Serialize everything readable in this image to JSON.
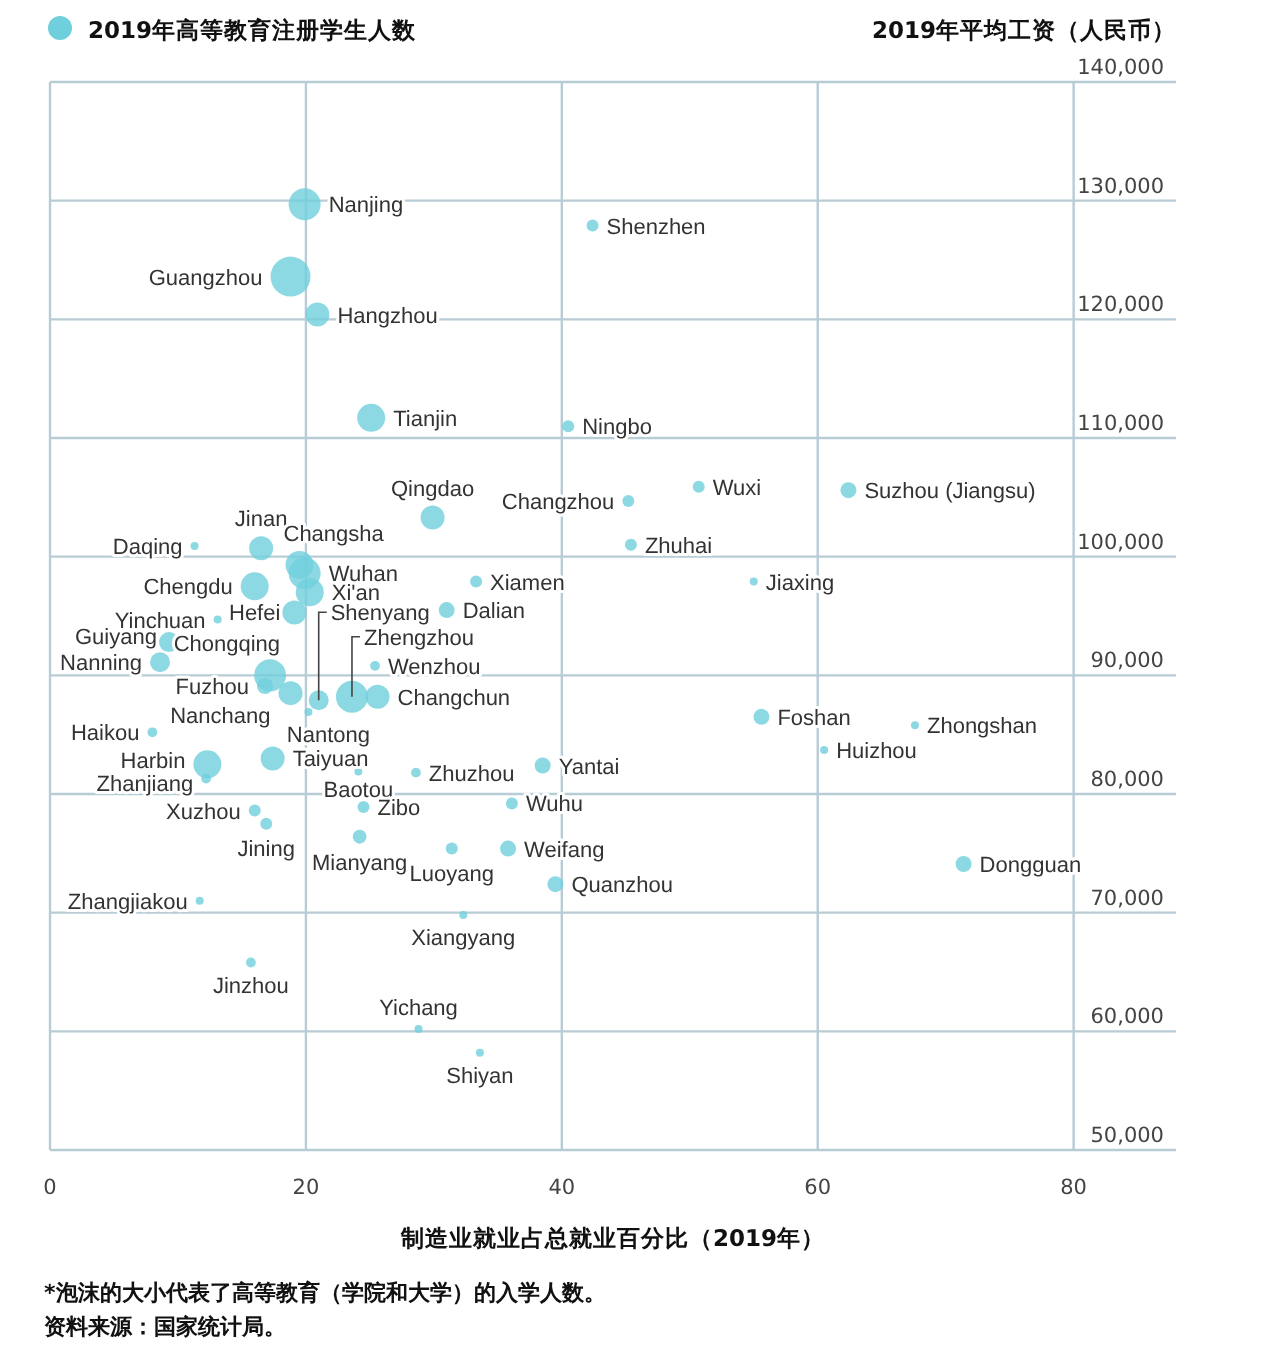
{
  "chart_data": {
    "type": "bubble",
    "xlabel": "制造业就业占总就业百分比（2019年）",
    "ylabel": "2019年平均工资（人民币）",
    "legend_title": "2019年高等教育注册学生人数",
    "grid": true,
    "xlim": [
      0,
      88
    ],
    "xticks": [
      0,
      20,
      40,
      60,
      80
    ],
    "ylim": [
      50000,
      140000
    ],
    "yticks": [
      {
        "value": 50000,
        "label": "50,000"
      },
      {
        "value": 60000,
        "label": "60,000"
      },
      {
        "value": 70000,
        "label": "70,000"
      },
      {
        "value": 80000,
        "label": "80,000"
      },
      {
        "value": 90000,
        "label": "90,000"
      },
      {
        "value": 100000,
        "label": "100,000"
      },
      {
        "value": 110000,
        "label": "110,000"
      },
      {
        "value": 120000,
        "label": "120,000"
      },
      {
        "value": 130000,
        "label": "130,000"
      },
      {
        "value": 140000,
        "label": "140,000"
      }
    ],
    "annotations": [
      "*泡沫的大小代表了高等教育（学院和大学）的入学人数。",
      "资料来源：国家统计局。"
    ],
    "series": [
      {
        "name": "Nanjing",
        "color": "#6fcfdc",
        "x": [
          19.9
        ],
        "values": [
          129700
        ],
        "sizes": [
          0.64
        ]
      },
      {
        "name": "Shenzhen",
        "color": "#6fcfdc",
        "x": [
          42.4
        ],
        "values": [
          127900
        ],
        "sizes": [
          0.09
        ]
      },
      {
        "name": "Guangzhou",
        "color": "#6fcfdc",
        "x": [
          18.8
        ],
        "values": [
          123600
        ],
        "sizes": [
          1
        ]
      },
      {
        "name": "Hangzhou",
        "color": "#6fcfdc",
        "x": [
          20.9
        ],
        "values": [
          120400
        ],
        "sizes": [
          0.36
        ]
      },
      {
        "name": "Tianjin",
        "color": "#6fcfdc",
        "x": [
          25.1
        ],
        "values": [
          111700
        ],
        "sizes": [
          0.49
        ]
      },
      {
        "name": "Ningbo",
        "color": "#6fcfdc",
        "x": [
          40.5
        ],
        "values": [
          111000
        ],
        "sizes": [
          0.09
        ]
      },
      {
        "name": "Qingdao",
        "color": "#6fcfdc",
        "x": [
          29.9
        ],
        "values": [
          103300
        ],
        "sizes": [
          0.36
        ]
      },
      {
        "name": "Changzhou",
        "color": "#6fcfdc",
        "x": [
          45.2
        ],
        "values": [
          104700
        ],
        "sizes": [
          0.09
        ]
      },
      {
        "name": "Wuxi",
        "color": "#6fcfdc",
        "x": [
          50.7
        ],
        "values": [
          105900
        ],
        "sizes": [
          0.09
        ]
      },
      {
        "name": "Suzhou (Jiangsu)",
        "color": "#6fcfdc",
        "x": [
          62.4
        ],
        "values": [
          105600
        ],
        "sizes": [
          0.16
        ]
      },
      {
        "name": "Zhuhai",
        "color": "#6fcfdc",
        "x": [
          45.4
        ],
        "values": [
          101000
        ],
        "sizes": [
          0.09
        ]
      },
      {
        "name": "Jiaxing",
        "color": "#6fcfdc",
        "x": [
          55.0
        ],
        "values": [
          97900
        ],
        "sizes": [
          0.04
        ]
      },
      {
        "name": "Daqing",
        "color": "#6fcfdc",
        "x": [
          11.3
        ],
        "values": [
          100900
        ],
        "sizes": [
          0.04
        ]
      },
      {
        "name": "Jinan",
        "color": "#6fcfdc",
        "x": [
          16.5
        ],
        "values": [
          100700
        ],
        "sizes": [
          0.36
        ]
      },
      {
        "name": "Changsha",
        "color": "#6fcfdc",
        "x": [
          19.5
        ],
        "values": [
          99300
        ],
        "sizes": [
          0.49
        ]
      },
      {
        "name": "Wuhan",
        "color": "#6fcfdc",
        "x": [
          19.9
        ],
        "values": [
          98600
        ],
        "sizes": [
          0.64
        ]
      },
      {
        "name": "Chengdu",
        "color": "#6fcfdc",
        "x": [
          16.0
        ],
        "values": [
          97500
        ],
        "sizes": [
          0.49
        ]
      },
      {
        "name": "Xi'an",
        "color": "#6fcfdc",
        "x": [
          20.3
        ],
        "values": [
          97000
        ],
        "sizes": [
          0.49
        ]
      },
      {
        "name": "Xiamen",
        "color": "#6fcfdc",
        "x": [
          33.3
        ],
        "values": [
          97900
        ],
        "sizes": [
          0.09
        ]
      },
      {
        "name": "Dalian",
        "color": "#6fcfdc",
        "x": [
          31.0
        ],
        "values": [
          95500
        ],
        "sizes": [
          0.16
        ]
      },
      {
        "name": "Yinchuan",
        "color": "#6fcfdc",
        "x": [
          13.1
        ],
        "values": [
          94700
        ],
        "sizes": [
          0.04
        ]
      },
      {
        "name": "Hefei",
        "color": "#6fcfdc",
        "x": [
          19.1
        ],
        "values": [
          95300
        ],
        "sizes": [
          0.36
        ]
      },
      {
        "name": "Guiyang",
        "color": "#6fcfdc",
        "x": [
          9.3
        ],
        "values": [
          92800
        ],
        "sizes": [
          0.25
        ]
      },
      {
        "name": "Nanning",
        "color": "#6fcfdc",
        "x": [
          8.6
        ],
        "values": [
          91100
        ],
        "sizes": [
          0.25
        ]
      },
      {
        "name": "Chongqing",
        "color": "#6fcfdc",
        "x": [
          17.2
        ],
        "values": [
          90000
        ],
        "sizes": [
          0.64
        ]
      },
      {
        "name": "Fuzhou",
        "color": "#6fcfdc",
        "x": [
          16.8
        ],
        "values": [
          89100
        ],
        "sizes": [
          0.16
        ]
      },
      {
        "name": "Nanchang",
        "color": "#6fcfdc",
        "x": [
          18.8
        ],
        "values": [
          88500
        ],
        "sizes": [
          0.36
        ]
      },
      {
        "name": "Shenyang",
        "color": "#6fcfdc",
        "x": [
          21.0
        ],
        "values": [
          87900
        ],
        "sizes": [
          0.25
        ]
      },
      {
        "name": "Nantong",
        "color": "#6fcfdc",
        "x": [
          20.2
        ],
        "values": [
          86900
        ],
        "sizes": [
          0.04
        ]
      },
      {
        "name": "Zhengzhou",
        "color": "#6fcfdc",
        "x": [
          23.6
        ],
        "values": [
          88200
        ],
        "sizes": [
          0.64
        ]
      },
      {
        "name": "Wenzhou",
        "color": "#6fcfdc",
        "x": [
          25.4
        ],
        "values": [
          90800
        ],
        "sizes": [
          0.06
        ]
      },
      {
        "name": "Changchun",
        "color": "#6fcfdc",
        "x": [
          25.6
        ],
        "values": [
          88200
        ],
        "sizes": [
          0.36
        ]
      },
      {
        "name": "Haikou",
        "color": "#6fcfdc",
        "x": [
          8.0
        ],
        "values": [
          85200
        ],
        "sizes": [
          0.06
        ]
      },
      {
        "name": "Harbin",
        "color": "#6fcfdc",
        "x": [
          12.3
        ],
        "values": [
          82500
        ],
        "sizes": [
          0.49
        ]
      },
      {
        "name": "Zhanjiang",
        "color": "#6fcfdc",
        "x": [
          12.2
        ],
        "values": [
          81300
        ],
        "sizes": [
          0.06
        ]
      },
      {
        "name": "Taiyuan",
        "color": "#6fcfdc",
        "x": [
          17.4
        ],
        "values": [
          83000
        ],
        "sizes": [
          0.36
        ]
      },
      {
        "name": "Baotou",
        "color": "#6fcfdc",
        "x": [
          24.1
        ],
        "values": [
          81900
        ],
        "sizes": [
          0.04
        ]
      },
      {
        "name": "Zhuzhou",
        "color": "#6fcfdc",
        "x": [
          28.6
        ],
        "values": [
          81800
        ],
        "sizes": [
          0.06
        ]
      },
      {
        "name": "Yantai",
        "color": "#6fcfdc",
        "x": [
          38.5
        ],
        "values": [
          82400
        ],
        "sizes": [
          0.16
        ]
      },
      {
        "name": "Xuzhou",
        "color": "#6fcfdc",
        "x": [
          16.0
        ],
        "values": [
          78600
        ],
        "sizes": [
          0.09
        ]
      },
      {
        "name": "Jining",
        "color": "#6fcfdc",
        "x": [
          16.9
        ],
        "values": [
          77500
        ],
        "sizes": [
          0.09
        ]
      },
      {
        "name": "Zibo",
        "color": "#6fcfdc",
        "x": [
          24.5
        ],
        "values": [
          78900
        ],
        "sizes": [
          0.09
        ]
      },
      {
        "name": "Wuhu",
        "color": "#6fcfdc",
        "x": [
          36.1
        ],
        "values": [
          79200
        ],
        "sizes": [
          0.09
        ]
      },
      {
        "name": "Mianyang",
        "color": "#6fcfdc",
        "x": [
          24.2
        ],
        "values": [
          76400
        ],
        "sizes": [
          0.12
        ]
      },
      {
        "name": "Luoyang",
        "color": "#6fcfdc",
        "x": [
          31.4
        ],
        "values": [
          75400
        ],
        "sizes": [
          0.09
        ]
      },
      {
        "name": "Weifang",
        "color": "#6fcfdc",
        "x": [
          35.8
        ],
        "values": [
          75400
        ],
        "sizes": [
          0.16
        ]
      },
      {
        "name": "Quanzhou",
        "color": "#6fcfdc",
        "x": [
          39.5
        ],
        "values": [
          72400
        ],
        "sizes": [
          0.16
        ]
      },
      {
        "name": "Zhangjiakou",
        "color": "#6fcfdc",
        "x": [
          11.7
        ],
        "values": [
          71000
        ],
        "sizes": [
          0.04
        ]
      },
      {
        "name": "Xiangyang",
        "color": "#6fcfdc",
        "x": [
          32.3
        ],
        "values": [
          69800
        ],
        "sizes": [
          0.04
        ]
      },
      {
        "name": "Jinzhou",
        "color": "#6fcfdc",
        "x": [
          15.7
        ],
        "values": [
          65800
        ],
        "sizes": [
          0.06
        ]
      },
      {
        "name": "Yichang",
        "color": "#6fcfdc",
        "x": [
          28.8
        ],
        "values": [
          60200
        ],
        "sizes": [
          0.04
        ]
      },
      {
        "name": "Shiyan",
        "color": "#6fcfdc",
        "x": [
          33.6
        ],
        "values": [
          58200
        ],
        "sizes": [
          0.04
        ]
      },
      {
        "name": "Foshan",
        "color": "#6fcfdc",
        "x": [
          55.6
        ],
        "values": [
          86500
        ],
        "sizes": [
          0.16
        ]
      },
      {
        "name": "Zhongshan",
        "color": "#6fcfdc",
        "x": [
          67.6
        ],
        "values": [
          85800
        ],
        "sizes": [
          0.04
        ]
      },
      {
        "name": "Huizhou",
        "color": "#6fcfdc",
        "x": [
          60.5
        ],
        "values": [
          83700
        ],
        "sizes": [
          0.04
        ]
      },
      {
        "name": "Dongguan",
        "color": "#6fcfdc",
        "x": [
          71.4
        ],
        "values": [
          74100
        ],
        "sizes": [
          0.16
        ]
      }
    ]
  }
}
